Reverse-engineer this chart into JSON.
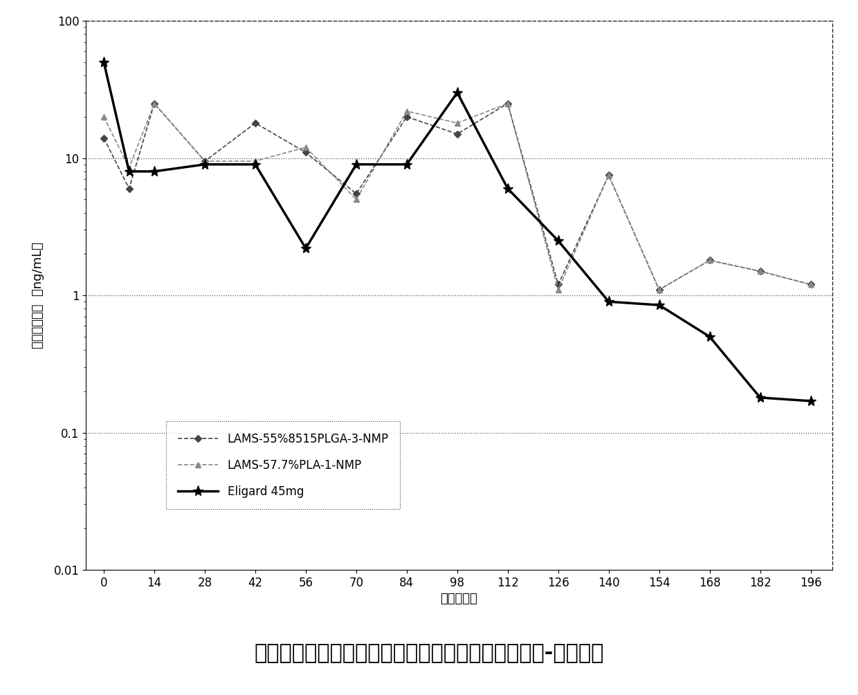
{
  "title": "单次皮下给药后雄性大鼠中亮丙瑞林的平均血清浓度-时间曲线",
  "xlabel": "时间（天）",
  "ylabel": "亮丙瑞林浓度  （ng/mL）",
  "x_ticks": [
    0,
    14,
    28,
    42,
    56,
    70,
    84,
    98,
    112,
    126,
    140,
    154,
    168,
    182,
    196
  ],
  "ylim_log": [
    0.01,
    100
  ],
  "series": [
    {
      "label": "LAMS-55%8515PLGA-3-NMP",
      "x": [
        0,
        7,
        14,
        28,
        42,
        56,
        70,
        84,
        98,
        112,
        126,
        140,
        154,
        168,
        182,
        196
      ],
      "y": [
        14,
        6,
        25,
        9.5,
        18,
        11,
        5.5,
        20,
        15,
        25,
        1.2,
        7.5,
        1.1,
        1.8,
        1.5,
        1.2
      ],
      "color": "#444444",
      "linewidth": 1.2,
      "linestyle": "--",
      "marker": "D",
      "markersize": 5
    },
    {
      "label": "LAMS-57.7%PLA-1-NMP",
      "x": [
        0,
        7,
        14,
        28,
        42,
        56,
        70,
        84,
        98,
        112,
        126,
        140,
        154,
        168,
        182,
        196
      ],
      "y": [
        20,
        8.5,
        25,
        9.5,
        9.5,
        12,
        5,
        22,
        18,
        25,
        1.1,
        7.5,
        1.1,
        1.8,
        1.5,
        1.2
      ],
      "color": "#888888",
      "linewidth": 1.2,
      "linestyle": "--",
      "marker": "^",
      "markersize": 6
    },
    {
      "label": "Eligard 45mg",
      "x": [
        0,
        7,
        14,
        28,
        42,
        56,
        70,
        84,
        98,
        112,
        126,
        140,
        154,
        168,
        182,
        196
      ],
      "y": [
        50,
        8,
        8,
        9,
        9,
        2.2,
        9,
        9,
        30,
        6,
        2.5,
        0.9,
        0.85,
        0.5,
        0.18,
        0.17
      ],
      "color": "#000000",
      "linewidth": 2.5,
      "linestyle": "-",
      "marker": "*",
      "markersize": 11
    }
  ],
  "background_color": "#ffffff",
  "grid_color": "#555555",
  "title_fontsize": 22,
  "axis_label_fontsize": 13,
  "tick_fontsize": 12,
  "legend_fontsize": 12
}
